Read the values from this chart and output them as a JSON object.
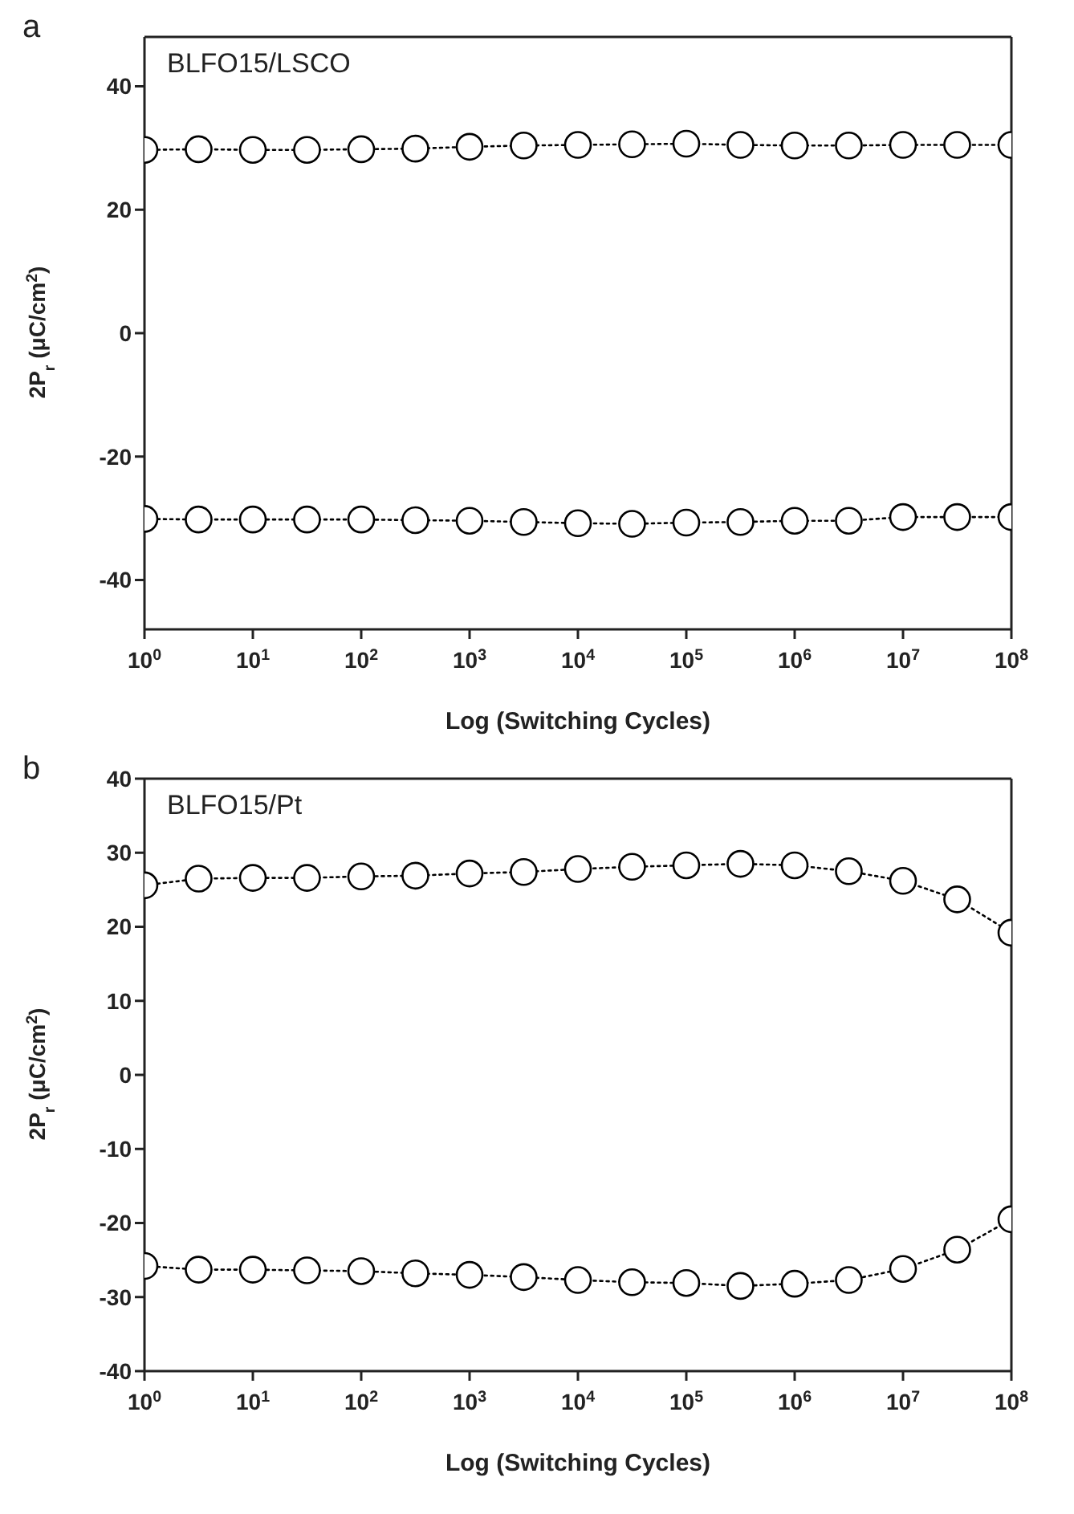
{
  "chart_data": [
    {
      "type": "line",
      "xlabel": "Log (Switching Cycles)",
      "ylabel": "2P$_{r}$ (μC/cm$^{2}$)",
      "annotations": [
        "a",
        "BLFO15/LSCO"
      ],
      "log": "x",
      "marker": "circle",
      "line_style": "dotted",
      "x": [
        1,
        3.16,
        10,
        31.6,
        100,
        316,
        1000,
        3160,
        10000,
        31600,
        100000,
        316000,
        1000000,
        3160000,
        10000000,
        31600000,
        100000000
      ],
      "xlim": [
        1,
        100000000
      ],
      "xticks": [
        {
          "value": 1,
          "label": "10$^{0}$"
        },
        {
          "value": 10,
          "label": "10$^{1}$"
        },
        {
          "value": 100,
          "label": "10$^{2}$"
        },
        {
          "value": 1000,
          "label": "10$^{3}$"
        },
        {
          "value": 10000,
          "label": "10$^{4}$"
        },
        {
          "value": 100000,
          "label": "10$^{5}$"
        },
        {
          "value": 1000000,
          "label": "10$^{6}$"
        },
        {
          "value": 10000000,
          "label": "10$^{7}$"
        },
        {
          "value": 100000000,
          "label": "10$^{8}$"
        }
      ],
      "ylim": [
        -48,
        48
      ],
      "yticks": [
        -40,
        -20,
        0,
        20,
        40
      ],
      "series": [
        {
          "color": "#000000",
          "values": [
            29.7,
            29.8,
            29.7,
            29.7,
            29.8,
            29.9,
            30.2,
            30.4,
            30.5,
            30.6,
            30.7,
            30.5,
            30.4,
            30.4,
            30.5,
            30.5,
            30.5
          ]
        },
        {
          "color": "#000000",
          "values": [
            -30.1,
            -30.2,
            -30.2,
            -30.2,
            -30.2,
            -30.3,
            -30.4,
            -30.6,
            -30.8,
            -30.9,
            -30.7,
            -30.6,
            -30.4,
            -30.4,
            -29.8,
            -29.8,
            -29.8
          ]
        }
      ]
    },
    {
      "type": "line",
      "xlabel": "Log (Switching Cycles)",
      "ylabel": "2P$_{r}$ (μC/cm$^{2}$)",
      "annotations": [
        "b",
        "BLFO15/Pt"
      ],
      "log": "x",
      "marker": "circle",
      "line_style": "dotted",
      "x": [
        1,
        3.16,
        10,
        31.6,
        100,
        316,
        1000,
        3160,
        10000,
        31600,
        100000,
        316000,
        1000000,
        3160000,
        10000000,
        31600000,
        100000000
      ],
      "xlim": [
        1,
        100000000
      ],
      "xticks": [
        {
          "value": 1,
          "label": "10$^{0}$"
        },
        {
          "value": 10,
          "label": "10$^{1}$"
        },
        {
          "value": 100,
          "label": "10$^{2}$"
        },
        {
          "value": 1000,
          "label": "10$^{3}$"
        },
        {
          "value": 10000,
          "label": "10$^{4}$"
        },
        {
          "value": 100000,
          "label": "10$^{5}$"
        },
        {
          "value": 1000000,
          "label": "10$^{6}$"
        },
        {
          "value": 10000000,
          "label": "10$^{7}$"
        },
        {
          "value": 100000000,
          "label": "10$^{8}$"
        }
      ],
      "ylim": [
        -40,
        40
      ],
      "yticks": [
        -40,
        -30,
        -20,
        -10,
        0,
        10,
        20,
        30,
        40
      ],
      "series": [
        {
          "color": "#000000",
          "values": [
            25.6,
            26.5,
            26.6,
            26.6,
            26.8,
            26.9,
            27.2,
            27.4,
            27.8,
            28.1,
            28.3,
            28.5,
            28.3,
            27.5,
            26.2,
            23.7,
            19.2
          ]
        },
        {
          "color": "#000000",
          "values": [
            -25.8,
            -26.3,
            -26.3,
            -26.4,
            -26.5,
            -26.8,
            -27.0,
            -27.3,
            -27.7,
            -28.0,
            -28.1,
            -28.5,
            -28.2,
            -27.7,
            -26.2,
            -23.6,
            -19.5
          ]
        }
      ]
    }
  ]
}
